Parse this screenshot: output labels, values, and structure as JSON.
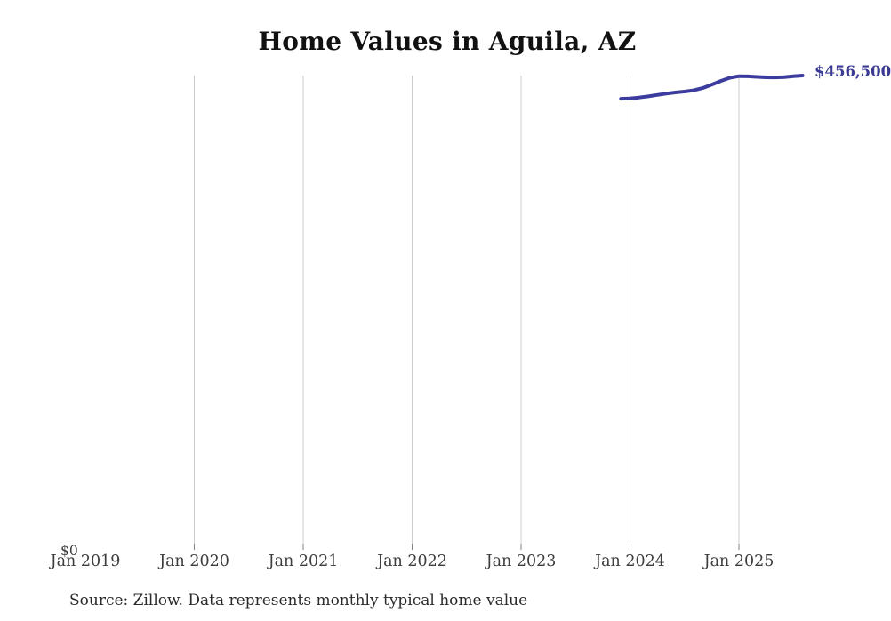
{
  "title": "Home Values in Aguila, AZ",
  "source_note": "Source: Zillow. Data represents monthly typical home value",
  "colors": {
    "background": "#ffffff",
    "line": "#3c3c9e",
    "end_label": "#3b3b94",
    "gridline": "#cccccc",
    "tick": "#828282",
    "axis_label": "#3d3d3d",
    "title": "#111111"
  },
  "chart_data": {
    "type": "line",
    "title": "Home Values in Aguila, AZ",
    "xlabel": "",
    "ylabel": "",
    "grid": "vertical-only",
    "legend": "none",
    "ylim": [
      0,
      456500
    ],
    "y_axis": {
      "zero_label": "$0"
    },
    "end_label": "$456,500",
    "x_ticks": [
      {
        "label": "Jan 2019",
        "month_offset": 0,
        "gridline": false
      },
      {
        "label": "Jan 2020",
        "month_offset": 12,
        "gridline": true
      },
      {
        "label": "Jan 2021",
        "month_offset": 24,
        "gridline": true
      },
      {
        "label": "Jan 2022",
        "month_offset": 36,
        "gridline": true
      },
      {
        "label": "Jan 2023",
        "month_offset": 48,
        "gridline": true
      },
      {
        "label": "Jan 2024",
        "month_offset": 60,
        "gridline": true
      },
      {
        "label": "Jan 2025",
        "month_offset": 72,
        "gridline": true
      }
    ],
    "series": [
      {
        "name": "Monthly typical home value",
        "start_month_offset": 59,
        "x": [
          "Dec 2023",
          "Jan 2024",
          "Feb 2024",
          "Mar 2024",
          "Apr 2024",
          "May 2024",
          "Jun 2024",
          "Jul 2024",
          "Aug 2024",
          "Sep 2024",
          "Oct 2024",
          "Nov 2024",
          "Dec 2024",
          "Jan 2025",
          "Feb 2025",
          "Mar 2025",
          "Apr 2025",
          "May 2025",
          "Jun 2025",
          "Jul 2025",
          "Aug 2025"
        ],
        "values": [
          434200,
          434600,
          435400,
          436500,
          437900,
          439200,
          440300,
          441100,
          442300,
          444500,
          447800,
          451300,
          454400,
          455900,
          455700,
          455200,
          454800,
          454700,
          455000,
          455800,
          456500
        ]
      }
    ]
  }
}
